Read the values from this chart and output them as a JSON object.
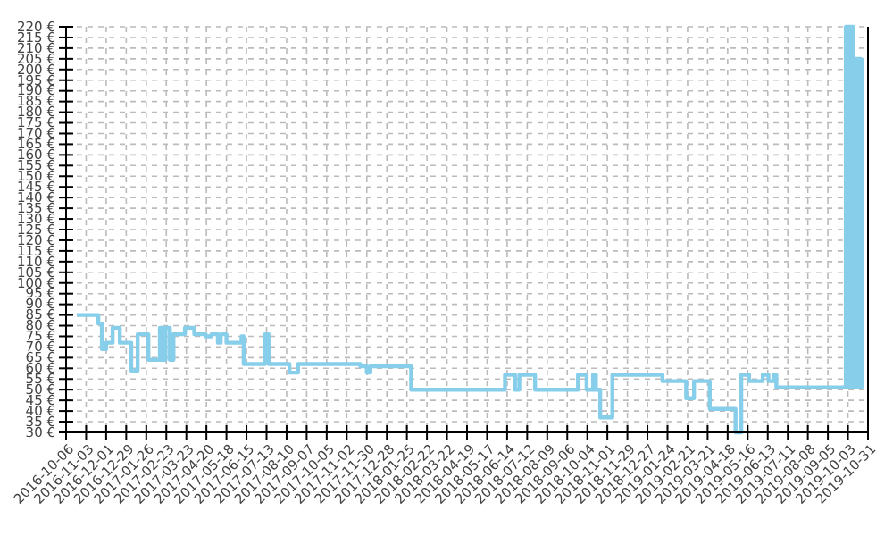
{
  "chart_data": {
    "type": "step",
    "xlim": [
      "2016-10-06",
      "2019-10-31"
    ],
    "ylim": [
      30,
      220
    ],
    "xticks": [
      "2016-10-06",
      "2016-11-03",
      "2016-12-01",
      "2016-12-29",
      "2017-01-26",
      "2017-02-23",
      "2017-03-23",
      "2017-04-20",
      "2017-05-18",
      "2017-06-15",
      "2017-07-13",
      "2017-08-10",
      "2017-09-07",
      "2017-10-05",
      "2017-11-02",
      "2017-11-30",
      "2017-12-28",
      "2018-01-25",
      "2018-02-22",
      "2018-03-22",
      "2018-04-19",
      "2018-05-17",
      "2018-06-14",
      "2018-07-12",
      "2018-08-09",
      "2018-09-06",
      "2018-10-04",
      "2018-11-01",
      "2018-11-29",
      "2018-12-27",
      "2019-01-24",
      "2019-02-21",
      "2019-03-21",
      "2019-04-18",
      "2019-05-16",
      "2019-06-13",
      "2019-07-11",
      "2019-08-08",
      "2019-09-05",
      "2019-10-03",
      "2019-10-31"
    ],
    "yticks": [
      {
        "value": 30,
        "label": "30 €"
      },
      {
        "value": 35,
        "label": "35 €"
      },
      {
        "value": 40,
        "label": "40 €"
      },
      {
        "value": 45,
        "label": "45 €"
      },
      {
        "value": 50,
        "label": "50 €"
      },
      {
        "value": 55,
        "label": "55 €"
      },
      {
        "value": 60,
        "label": "60 €"
      },
      {
        "value": 65,
        "label": "65 €"
      },
      {
        "value": 70,
        "label": "70 €"
      },
      {
        "value": 75,
        "label": "75 €"
      },
      {
        "value": 80,
        "label": "80 €"
      },
      {
        "value": 85,
        "label": "85 €"
      },
      {
        "value": 90,
        "label": "90 €"
      },
      {
        "value": 95,
        "label": "95 €"
      },
      {
        "value": 100,
        "label": "100 €"
      },
      {
        "value": 105,
        "label": "105 €"
      },
      {
        "value": 110,
        "label": "110 €"
      },
      {
        "value": 115,
        "label": "115 €"
      },
      {
        "value": 120,
        "label": "120 €"
      },
      {
        "value": 125,
        "label": "125 €"
      },
      {
        "value": 130,
        "label": "130 €"
      },
      {
        "value": 135,
        "label": "135 €"
      },
      {
        "value": 140,
        "label": "140 €"
      },
      {
        "value": 145,
        "label": "145 €"
      },
      {
        "value": 150,
        "label": "150 €"
      },
      {
        "value": 155,
        "label": "155 €"
      },
      {
        "value": 160,
        "label": "160 €"
      },
      {
        "value": 165,
        "label": "165 €"
      },
      {
        "value": 170,
        "label": "170 €"
      },
      {
        "value": 175,
        "label": "175 €"
      },
      {
        "value": 180,
        "label": "180 €"
      },
      {
        "value": 185,
        "label": "185 €"
      },
      {
        "value": 190,
        "label": "190 €"
      },
      {
        "value": 195,
        "label": "195 €"
      },
      {
        "value": 200,
        "label": "200 €"
      },
      {
        "value": 205,
        "label": "205 €"
      },
      {
        "value": 210,
        "label": "210 €"
      },
      {
        "value": 215,
        "label": "215 €"
      },
      {
        "value": 220,
        "label": "220 €"
      }
    ],
    "grid": true,
    "series": [
      {
        "color": "#87ceeb",
        "x": [
          "2016-10-21",
          "2016-11-20",
          "2016-11-25",
          "2016-12-01",
          "2016-12-10",
          "2016-12-20",
          "2017-01-05",
          "2017-01-14",
          "2017-01-29",
          "2017-02-14",
          "2017-02-18",
          "2017-02-22",
          "2017-02-28",
          "2017-03-05",
          "2017-03-21",
          "2017-04-03",
          "2017-04-19",
          "2017-04-27",
          "2017-05-06",
          "2017-05-10",
          "2017-05-18",
          "2017-06-08",
          "2017-06-11",
          "2017-07-11",
          "2017-07-16",
          "2017-08-14",
          "2017-08-26",
          "2017-11-21",
          "2017-11-30",
          "2017-12-05",
          "2018-01-31",
          "2018-06-11",
          "2018-06-25",
          "2018-07-01",
          "2018-07-23",
          "2018-09-21",
          "2018-10-03",
          "2018-10-12",
          "2018-10-16",
          "2018-10-22",
          "2018-11-08",
          "2019-01-17",
          "2019-02-19",
          "2019-03-02",
          "2019-03-24",
          "2019-04-29",
          "2019-05-07",
          "2019-05-18",
          "2019-06-06",
          "2019-06-14",
          "2019-06-21",
          "2019-06-25",
          "2019-09-30",
          "2019-10-02",
          "2019-10-03",
          "2019-10-05",
          "2019-10-06",
          "2019-10-08",
          "2019-10-09",
          "2019-10-10",
          "2019-10-12",
          "2019-10-13",
          "2019-10-15",
          "2019-10-16",
          "2019-10-18",
          "2019-10-19",
          "2019-10-21",
          "2019-10-22"
        ],
        "values": [
          85,
          81,
          69,
          72,
          79,
          72,
          59,
          76,
          64,
          79,
          64,
          79,
          64,
          76,
          79,
          76,
          75,
          76,
          72,
          76,
          72,
          75,
          62,
          76,
          62,
          58,
          62,
          61,
          58,
          61,
          50,
          57,
          50,
          57,
          50,
          57,
          50,
          57,
          50,
          37,
          57,
          54,
          46,
          54,
          41,
          30,
          57,
          54,
          57,
          54,
          57,
          51,
          220,
          51,
          220,
          51,
          220,
          51,
          220,
          205,
          51,
          205,
          51,
          205,
          51,
          205,
          51,
          205
        ]
      }
    ]
  }
}
